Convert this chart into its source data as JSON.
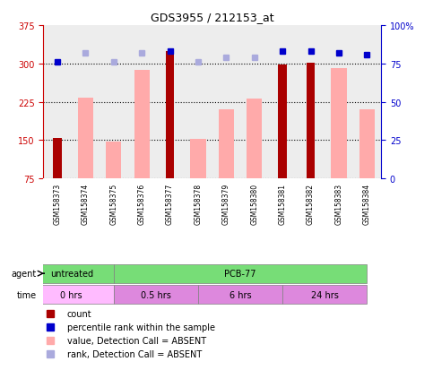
{
  "title": "GDS3955 / 212153_at",
  "samples": [
    "GSM158373",
    "GSM158374",
    "GSM158375",
    "GSM158376",
    "GSM158377",
    "GSM158378",
    "GSM158379",
    "GSM158380",
    "GSM158381",
    "GSM158382",
    "GSM158383",
    "GSM158384"
  ],
  "count_values": [
    155,
    null,
    null,
    null,
    325,
    null,
    null,
    null,
    298,
    302,
    null,
    null
  ],
  "absent_value_bars": [
    null,
    233,
    148,
    287,
    null,
    152,
    210,
    232,
    null,
    null,
    291,
    210
  ],
  "percentile_rank": [
    76,
    null,
    null,
    null,
    83,
    null,
    null,
    null,
    83,
    83,
    82,
    81
  ],
  "absent_rank": [
    null,
    82,
    76,
    82,
    null,
    76,
    79,
    79,
    null,
    null,
    null,
    null
  ],
  "ylim_left": [
    75,
    375
  ],
  "ylim_right": [
    0,
    100
  ],
  "yticks_left": [
    75,
    150,
    225,
    300,
    375
  ],
  "yticks_right": [
    0,
    25,
    50,
    75,
    100
  ],
  "count_color": "#aa0000",
  "absent_value_color": "#ffaaaa",
  "rank_color": "#0000cc",
  "absent_rank_color": "#aaaadd",
  "agent_untreated": {
    "label": "untreated",
    "samples": [
      0,
      1,
      2
    ],
    "color": "#88ee88"
  },
  "agent_pcb77": {
    "label": "PCB-77",
    "samples": [
      3,
      4,
      5,
      6,
      7,
      8,
      9,
      10,
      11
    ],
    "color": "#88ee88"
  },
  "time_groups": [
    {
      "label": "0 hrs",
      "samples": [
        0,
        1,
        2
      ],
      "color": "#ffbbff"
    },
    {
      "label": "0.5 hrs",
      "samples": [
        3,
        4,
        5
      ],
      "color": "#dd88dd"
    },
    {
      "label": "6 hrs",
      "samples": [
        6,
        7,
        8
      ],
      "color": "#dd88dd"
    },
    {
      "label": "24 hrs",
      "samples": [
        9,
        10,
        11
      ],
      "color": "#dd88dd"
    }
  ],
  "dotted_line_color": "#000000",
  "bg_color": "#ffffff",
  "sample_col_color": "#cccccc",
  "left_axis_color": "#cc0000",
  "right_axis_color": "#0000cc"
}
